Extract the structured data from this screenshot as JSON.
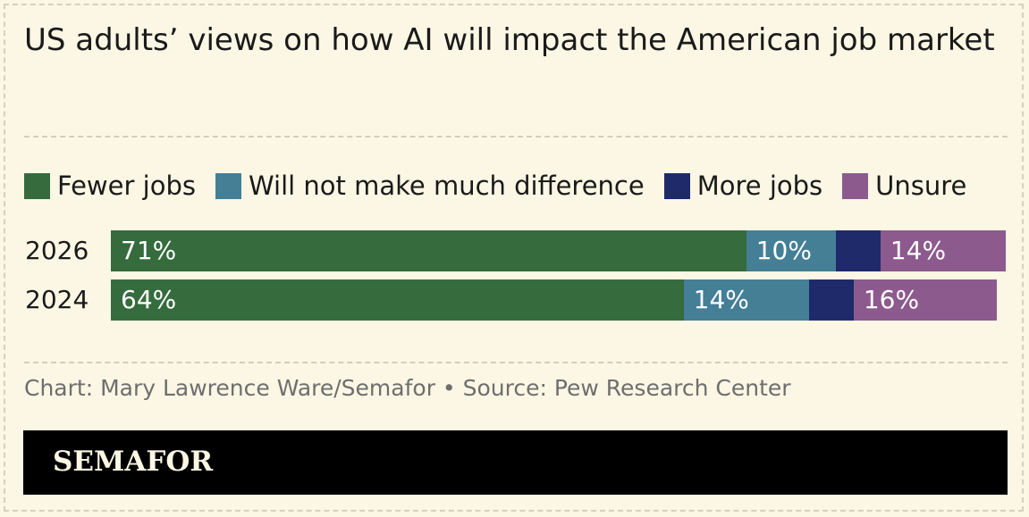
{
  "title": "US adults’ views on how AI will impact the American job market",
  "credit": "Chart: Mary Lawrence Ware/Semafor • Source: Pew Research Center",
  "brand": "SEMAFOR",
  "colors": {
    "background": "#fbf7e4",
    "fewer_jobs": "#356b3d",
    "no_difference": "#447f96",
    "more_jobs": "#1f2a6a",
    "unsure": "#8c5a8d",
    "footer": "#000000"
  },
  "chart_data": {
    "type": "bar",
    "orientation": "horizontal",
    "stacked": true,
    "title": "US adults’ views on how AI will impact the American job market",
    "categories": [
      "2026",
      "2024"
    ],
    "legend_position": "top",
    "grid": false,
    "xlim": [
      0,
      100
    ],
    "series": [
      {
        "name": "Fewer jobs",
        "values": [
          71,
          64
        ],
        "labels": [
          "71%",
          "64%"
        ],
        "color": "#356b3d"
      },
      {
        "name": "Will not make much difference",
        "values": [
          10,
          14
        ],
        "labels": [
          "10%",
          "14%"
        ],
        "color": "#447f96"
      },
      {
        "name": "More jobs",
        "values": [
          5,
          5
        ],
        "labels": [
          "",
          ""
        ],
        "color": "#1f2a6a"
      },
      {
        "name": "Unsure",
        "values": [
          14,
          16
        ],
        "labels": [
          "14%",
          "16%"
        ],
        "color": "#8c5a8d"
      }
    ]
  }
}
